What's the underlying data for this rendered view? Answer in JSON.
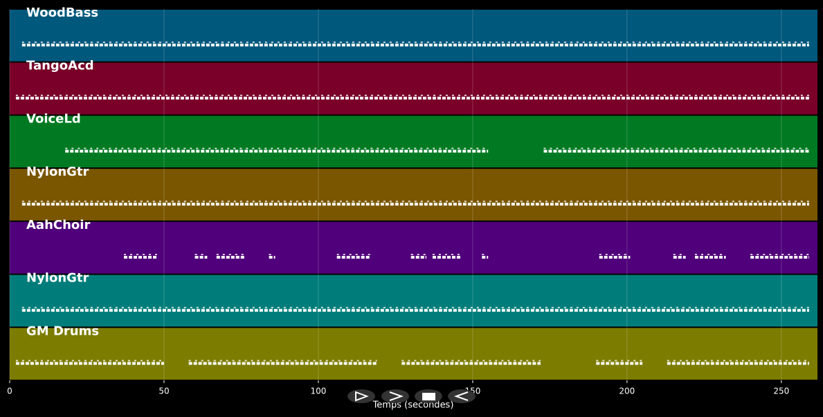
{
  "chart_data": {
    "type": "pianoroll",
    "x_label": "Temps (secondes)",
    "xlim": [
      0,
      261.7
    ],
    "xticks": [
      0,
      50,
      100,
      150,
      200,
      250
    ],
    "grid": true,
    "tracks": [
      {
        "name": "WoodBass",
        "color": "#00587c",
        "segments": [
          [
            4,
            259
          ]
        ]
      },
      {
        "name": "TangoAcd",
        "color": "#7a0029",
        "segments": [
          [
            2,
            259
          ]
        ]
      },
      {
        "name": "VoiceLd",
        "color": "#007a22",
        "segments": [
          [
            18,
            155
          ],
          [
            173,
            259
          ]
        ]
      },
      {
        "name": "NylonGtr",
        "color": "#7a5600",
        "segments": [
          [
            4,
            259
          ]
        ]
      },
      {
        "name": "AahChoir",
        "color": "#4f007a",
        "segments": [
          [
            37,
            48
          ],
          [
            60,
            64
          ],
          [
            67,
            76
          ],
          [
            84,
            86
          ],
          [
            106,
            117
          ],
          [
            130,
            135
          ],
          [
            137,
            146
          ],
          [
            153,
            155
          ],
          [
            191,
            201
          ],
          [
            215,
            219
          ],
          [
            222,
            232
          ],
          [
            240,
            259
          ]
        ]
      },
      {
        "name": "NylonGtr",
        "color": "#007d7a",
        "segments": [
          [
            4,
            259
          ]
        ]
      },
      {
        "name": "GM Drums",
        "color": "#7c7c00",
        "segments": [
          [
            2,
            50
          ],
          [
            58,
            119
          ],
          [
            127,
            172
          ],
          [
            190,
            205
          ],
          [
            213,
            259
          ]
        ]
      }
    ]
  }
}
